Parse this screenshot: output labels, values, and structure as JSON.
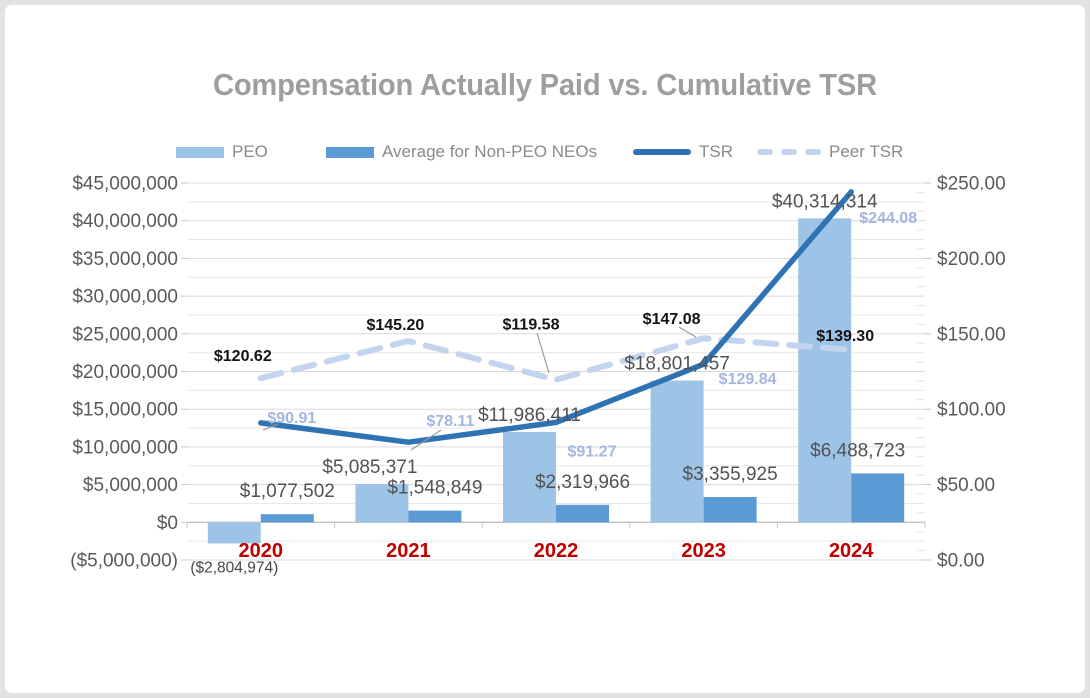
{
  "title": "Compensation Actually Paid vs. Cumulative TSR",
  "legend": {
    "items": [
      {
        "label": "PEO",
        "type": "bar",
        "color": "#9DC3E6"
      },
      {
        "label": "Average for Non-PEO NEOs",
        "type": "bar",
        "color": "#5B9BD5"
      },
      {
        "label": "TSR",
        "type": "line",
        "color": "#2E74B5"
      },
      {
        "label": "Peer TSR",
        "type": "dashed-line",
        "color": "#C3D5EE"
      }
    ]
  },
  "chart_data": {
    "type": "combo-bar-line",
    "categories": [
      "2020",
      "2021",
      "2022",
      "2023",
      "2024"
    ],
    "series": [
      {
        "name": "PEO",
        "type": "bar",
        "axis": "left",
        "color": "#9DC3E6",
        "values": [
          -2804974,
          5085371,
          11986411,
          18801457,
          40314314
        ],
        "labels": [
          "($2,804,974)",
          "$5,085,371",
          "$11,986,411",
          "$18,801,457",
          "$40,314,314"
        ]
      },
      {
        "name": "Average for Non-PEO NEOs",
        "type": "bar",
        "axis": "left",
        "color": "#5B9BD5",
        "values": [
          1077502,
          1548849,
          2319966,
          3355925,
          6488723
        ],
        "labels": [
          "$1,077,502",
          "$1,548,849",
          "$2,319,966",
          "$3,355,925",
          "$6,488,723"
        ]
      },
      {
        "name": "TSR",
        "type": "line",
        "axis": "right",
        "color": "#2E74B5",
        "values": [
          90.91,
          78.11,
          91.27,
          129.84,
          244.08
        ],
        "labels": [
          "$90.91",
          "$78.11",
          "$91.27",
          "$129.84",
          "$244.08"
        ],
        "label_color": "#A3B6E0"
      },
      {
        "name": "Peer TSR",
        "type": "dashed-line",
        "axis": "right",
        "color": "#C3D5EE",
        "values": [
          120.62,
          145.2,
          119.58,
          147.08,
          139.3
        ],
        "labels": [
          "$120.62",
          "$145.20",
          "$119.58",
          "$147.08",
          "$139.30"
        ],
        "label_color": "#141414"
      }
    ],
    "left_axis": {
      "min": -5000000,
      "max": 45000000,
      "major_unit": 5000000,
      "minor_gridlines": true,
      "tick_labels": [
        "$45,000,000",
        "$40,000,000",
        "$35,000,000",
        "$30,000,000",
        "$25,000,000",
        "$20,000,000",
        "$15,000,000",
        "$10,000,000",
        "$5,000,000",
        "$0",
        "($5,000,000)"
      ]
    },
    "right_axis": {
      "min": 0,
      "max": 250,
      "major_unit": 50,
      "tick_labels": [
        "$250.00",
        "$200.00",
        "$150.00",
        "$100.00",
        "$50.00",
        "$0.00"
      ]
    },
    "x_axis": {
      "tick_labels": [
        "2020",
        "2021",
        "2022",
        "2023",
        "2024"
      ],
      "label_color": "#C00000"
    },
    "grid": true,
    "legend_position": "top"
  }
}
